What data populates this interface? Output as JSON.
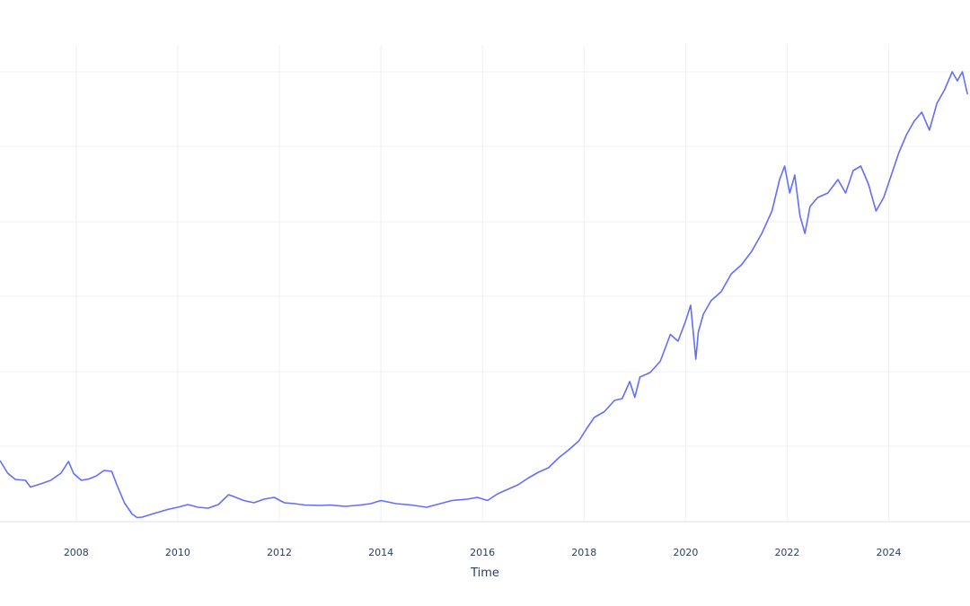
{
  "chart_data": {
    "type": "line",
    "title": "",
    "xlabel": "Time",
    "ylabel": "",
    "xlim": [
      2006.5,
      2025.6
    ],
    "ylim": [
      0,
      1
    ],
    "y_scale_note": "",
    "grid": true,
    "legend": "none",
    "x_ticks": [
      2008,
      2010,
      2012,
      2014,
      2016,
      2018,
      2020,
      2022,
      2024
    ],
    "x_tick_labels": [
      "2008",
      "2010",
      "2012",
      "2014",
      "2016",
      "2018",
      "2020",
      "2022",
      "2024"
    ],
    "series": [
      {
        "color": "#636efa",
        "x": [
          2006.5,
          2006.65,
          2006.8,
          2007.0,
          2007.1,
          2007.3,
          2007.5,
          2007.7,
          2007.85,
          2007.95,
          2008.1,
          2008.25,
          2008.4,
          2008.55,
          2008.7,
          2008.8,
          2008.95,
          2009.1,
          2009.2,
          2009.3,
          2009.5,
          2009.8,
          2010.0,
          2010.2,
          2010.4,
          2010.6,
          2010.8,
          2011.0,
          2011.1,
          2011.3,
          2011.5,
          2011.7,
          2011.9,
          2012.1,
          2012.3,
          2012.5,
          2012.8,
          2013.0,
          2013.3,
          2013.6,
          2013.8,
          2014.0,
          2014.3,
          2014.6,
          2014.9,
          2015.1,
          2015.4,
          2015.7,
          2015.9,
          2016.1,
          2016.3,
          2016.5,
          2016.7,
          2016.9,
          2017.1,
          2017.3,
          2017.5,
          2017.7,
          2017.9,
          2018.05,
          2018.2,
          2018.4,
          2018.6,
          2018.75,
          2018.9,
          2019.0,
          2019.1,
          2019.3,
          2019.5,
          2019.7,
          2019.85,
          2020.0,
          2020.1,
          2020.2,
          2020.25,
          2020.35,
          2020.5,
          2020.7,
          2020.9,
          2021.1,
          2021.3,
          2021.5,
          2021.7,
          2021.85,
          2021.95,
          2022.05,
          2022.15,
          2022.25,
          2022.35,
          2022.45,
          2022.6,
          2022.8,
          2023.0,
          2023.15,
          2023.3,
          2023.45,
          2023.6,
          2023.75,
          2023.9,
          2024.05,
          2024.2,
          2024.35,
          2024.5,
          2024.65,
          2024.8,
          2024.95,
          2025.1,
          2025.25,
          2025.35,
          2025.45,
          2025.55
        ],
        "y": [
          0.134,
          0.106,
          0.092,
          0.09,
          0.075,
          0.082,
          0.09,
          0.106,
          0.132,
          0.105,
          0.09,
          0.093,
          0.1,
          0.112,
          0.11,
          0.08,
          0.04,
          0.015,
          0.007,
          0.008,
          0.015,
          0.025,
          0.03,
          0.036,
          0.03,
          0.028,
          0.036,
          0.058,
          0.054,
          0.045,
          0.04,
          0.048,
          0.052,
          0.04,
          0.038,
          0.035,
          0.034,
          0.035,
          0.032,
          0.035,
          0.038,
          0.045,
          0.038,
          0.035,
          0.03,
          0.036,
          0.045,
          0.048,
          0.052,
          0.045,
          0.06,
          0.07,
          0.08,
          0.095,
          0.108,
          0.118,
          0.14,
          0.158,
          0.178,
          0.205,
          0.23,
          0.243,
          0.268,
          0.272,
          0.31,
          0.275,
          0.32,
          0.33,
          0.355,
          0.415,
          0.4,
          0.445,
          0.48,
          0.36,
          0.42,
          0.46,
          0.49,
          0.51,
          0.55,
          0.57,
          0.6,
          0.64,
          0.69,
          0.76,
          0.79,
          0.73,
          0.77,
          0.68,
          0.64,
          0.7,
          0.72,
          0.73,
          0.76,
          0.73,
          0.78,
          0.79,
          0.75,
          0.69,
          0.72,
          0.77,
          0.82,
          0.86,
          0.89,
          0.91,
          0.87,
          0.93,
          0.96,
          1.0,
          0.98,
          1.0,
          0.95
        ]
      }
    ]
  }
}
